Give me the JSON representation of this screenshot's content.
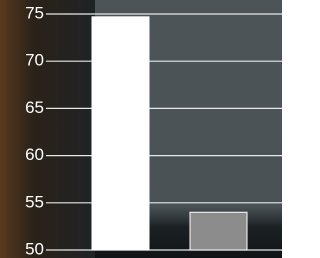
{
  "chart_data": {
    "type": "bar",
    "categories": [
      null,
      null
    ],
    "values": [
      74.7,
      54.0
    ],
    "colors": [
      "#ffffff",
      "#8c8c8c"
    ],
    "ylim": [
      50,
      75
    ],
    "yticks": [
      50,
      55,
      60,
      65,
      70,
      75
    ],
    "grid": true
  }
}
